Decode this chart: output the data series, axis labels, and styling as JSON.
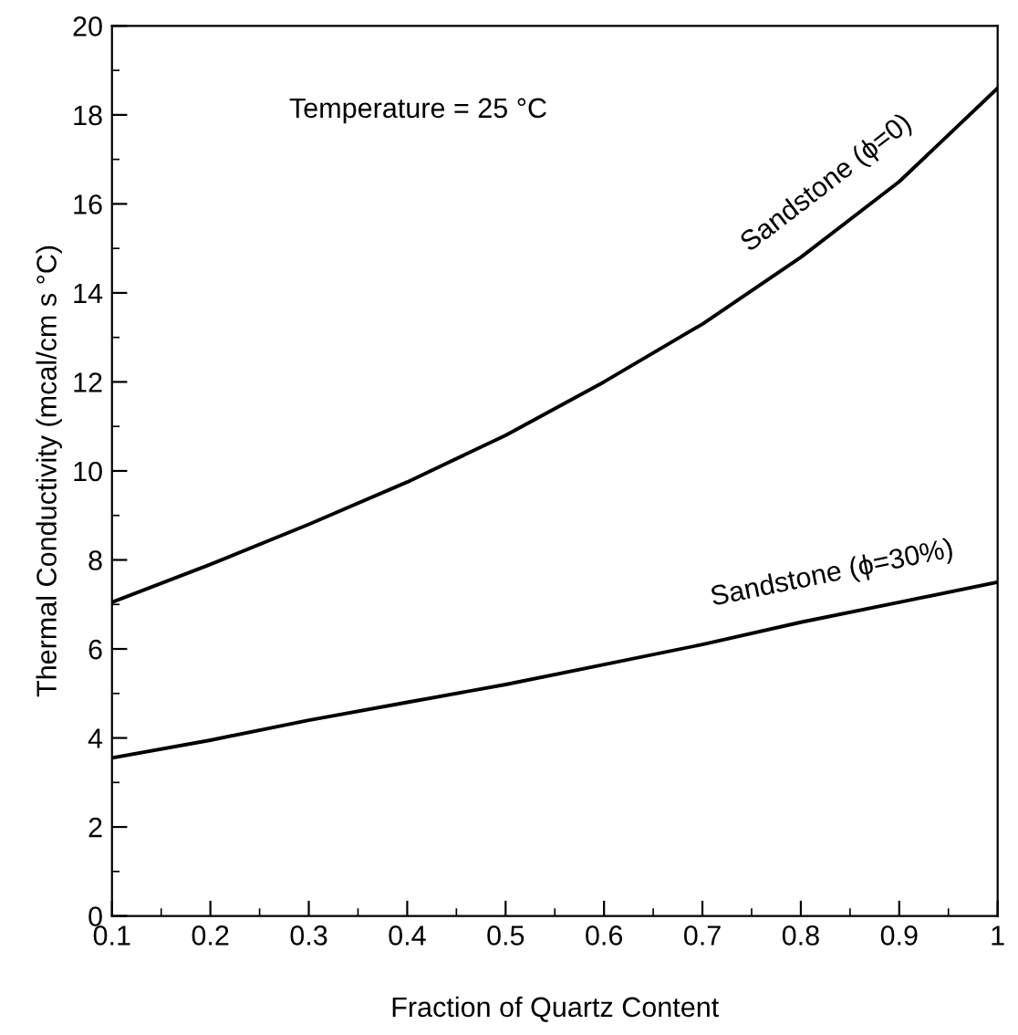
{
  "chart_data": {
    "type": "line",
    "xlabel": "Fraction of Quartz Content",
    "ylabel": "Thermal Conductivity (mcal/cm s °C)",
    "annotations": [
      "Temperature = 25 °C"
    ],
    "x": [
      0.1,
      0.2,
      0.3,
      0.4,
      0.5,
      0.6,
      0.7,
      0.8,
      0.9,
      1.0
    ],
    "series": [
      {
        "name": "Sandstone (ϕ=0)",
        "color": "#000000",
        "values": [
          7.05,
          7.9,
          8.8,
          9.75,
          10.8,
          12.0,
          13.3,
          14.8,
          16.5,
          18.6
        ]
      },
      {
        "name": "Sandstone (ϕ=30%)",
        "color": "#000000",
        "values": [
          3.55,
          3.95,
          4.4,
          4.8,
          5.2,
          5.65,
          6.1,
          6.6,
          7.05,
          7.5
        ]
      }
    ],
    "xlim": [
      0.1,
      1.0
    ],
    "ylim": [
      0,
      20
    ],
    "xticks": [
      0.1,
      0.2,
      0.3,
      0.4,
      0.5,
      0.6,
      0.7,
      0.8,
      0.9,
      {
        "value": 1.0,
        "label": "1"
      }
    ],
    "yticks": [
      0,
      2,
      4,
      6,
      8,
      10,
      12,
      14,
      16,
      18,
      20
    ],
    "grid": false,
    "legend": false,
    "marker": "none",
    "line_style": "solid"
  }
}
